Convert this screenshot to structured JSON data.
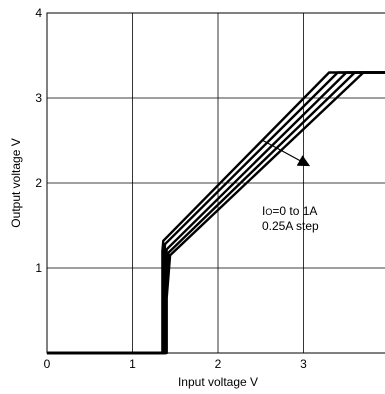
{
  "chart_data": {
    "type": "line",
    "xlabel": "Input voltage  V",
    "ylabel": "Output voltage  V",
    "xlim": [
      0,
      4
    ],
    "ylim": [
      0,
      4
    ],
    "xticks": [
      "0",
      "1",
      "2",
      "3",
      "4"
    ],
    "yticks": [
      "0",
      "1",
      "2",
      "3",
      "4"
    ],
    "grid": true,
    "annotation": {
      "line1_prefix": "I",
      "line1_sub": "O",
      "line1_rest": "=0 to 1A",
      "line2": "0.25A step",
      "arrow_direction": "increasing load current"
    },
    "series": [
      {
        "x": [
          0,
          1.35,
          1.35,
          1.36,
          3.3,
          4.0
        ],
        "y": [
          0,
          0,
          1.2,
          1.32,
          3.3,
          3.3
        ]
      },
      {
        "x": [
          0,
          1.37,
          1.37,
          1.38,
          3.4,
          4.0
        ],
        "y": [
          0,
          0,
          1.1,
          1.28,
          3.3,
          3.3
        ]
      },
      {
        "x": [
          0,
          1.38,
          1.38,
          1.4,
          3.5,
          4.0
        ],
        "y": [
          0,
          0,
          0.95,
          1.22,
          3.3,
          3.3
        ]
      },
      {
        "x": [
          0,
          1.39,
          1.39,
          1.42,
          3.6,
          4.0
        ],
        "y": [
          0,
          0,
          0.8,
          1.18,
          3.3,
          3.3
        ]
      },
      {
        "x": [
          0,
          1.4,
          1.4,
          1.44,
          3.7,
          4.0
        ],
        "y": [
          0,
          0,
          0.65,
          1.15,
          3.3,
          3.3
        ]
      }
    ]
  }
}
